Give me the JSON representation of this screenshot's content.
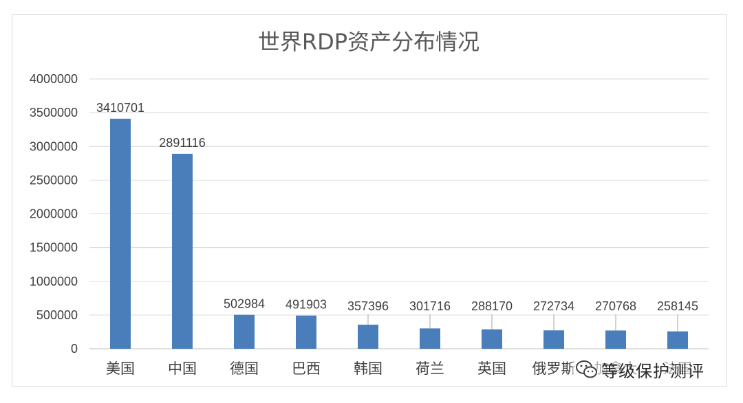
{
  "chart_data": {
    "type": "bar",
    "title": "世界RDP资产分布情况",
    "categories": [
      "美国",
      "中国",
      "德国",
      "巴西",
      "韩国",
      "荷兰",
      "英国",
      "俄罗斯",
      "加拿大",
      "法国"
    ],
    "values": [
      3410701,
      2891116,
      502984,
      491903,
      357396,
      301716,
      288170,
      272734,
      270768,
      258145
    ],
    "value_labels": [
      "3410701",
      "2891116",
      "502984",
      "491903",
      "357396",
      "301716",
      "288170",
      "272734",
      "270768",
      "258145"
    ],
    "y_ticks": [
      "0",
      "500000",
      "1000000",
      "1500000",
      "2000000",
      "2500000",
      "3000000",
      "3500000",
      "4000000"
    ],
    "ylim": [
      0,
      4000000
    ],
    "xlabel": "",
    "ylabel": "",
    "grid": true,
    "bar_color": "#4a7ebb"
  },
  "watermark": {
    "text": "等级保护测评",
    "icon": "wechat-icon"
  }
}
